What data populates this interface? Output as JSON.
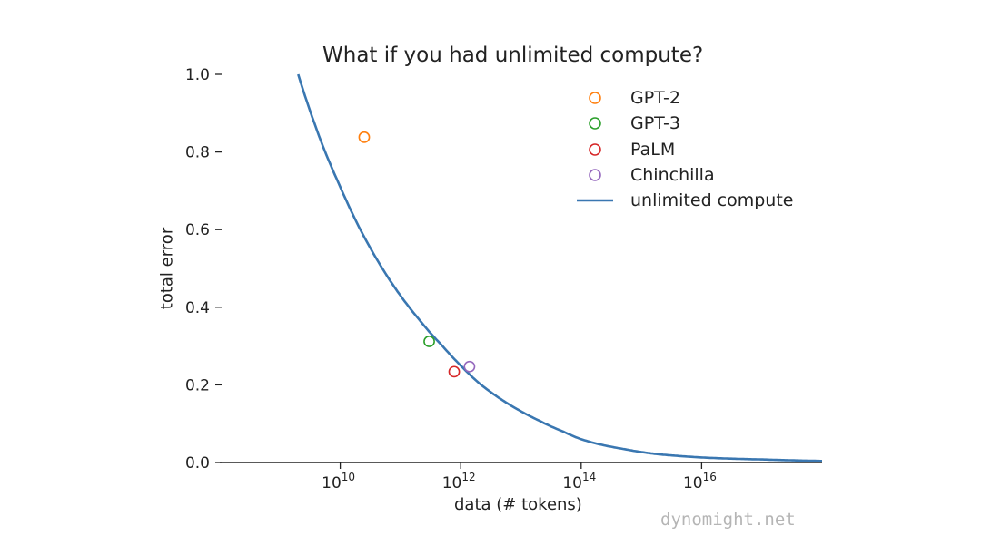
{
  "chart_data": {
    "type": "scatter",
    "title": "What if you had unlimited compute?",
    "xlabel": "data (# tokens)",
    "ylabel": "total error",
    "xscale": "log",
    "xlim": [
      100000000.0,
      1e+18
    ],
    "ylim": [
      0.0,
      1.0
    ],
    "yticks": [
      {
        "value": 0.0,
        "label": "0.0"
      },
      {
        "value": 0.2,
        "label": "0.2"
      },
      {
        "value": 0.4,
        "label": "0.4"
      },
      {
        "value": 0.6,
        "label": "0.6"
      },
      {
        "value": 0.8,
        "label": "0.8"
      },
      {
        "value": 1.0,
        "label": "1.0"
      }
    ],
    "xticks": [
      {
        "value": 10000000000.0,
        "base": "10",
        "exp": "10"
      },
      {
        "value": 1000000000000.0,
        "base": "10",
        "exp": "12"
      },
      {
        "value": 100000000000000.0,
        "base": "10",
        "exp": "14"
      },
      {
        "value": 1e+16,
        "base": "10",
        "exp": "16"
      }
    ],
    "grid": false,
    "legend_position": "top-right",
    "series": [
      {
        "name": "GPT-2",
        "kind": "points",
        "color": "#ff7f0e",
        "points": [
          {
            "x": 25000000000.0,
            "y": 0.838
          }
        ]
      },
      {
        "name": "GPT-3",
        "kind": "points",
        "color": "#2ca02c",
        "points": [
          {
            "x": 300000000000.0,
            "y": 0.312
          }
        ]
      },
      {
        "name": "PaLM",
        "kind": "points",
        "color": "#d62728",
        "points": [
          {
            "x": 780000000000.0,
            "y": 0.234
          }
        ]
      },
      {
        "name": "Chinchilla",
        "kind": "points",
        "color": "#9467bd",
        "points": [
          {
            "x": 1400000000000.0,
            "y": 0.247
          }
        ]
      },
      {
        "name": "unlimited compute",
        "kind": "curve",
        "color": "#3a77b1",
        "x": [
          2000000000.0,
          5000000000.0,
          10000000000.0,
          20000000000.0,
          50000000000.0,
          100000000000.0,
          200000000000.0,
          500000000000.0,
          1000000000000.0,
          2000000000000.0,
          5000000000000.0,
          10000000000000.0,
          20000000000000.0,
          50000000000000.0,
          100000000000000.0,
          200000000000000.0,
          500000000000000.0,
          1000000000000000.0,
          2000000000000000.0,
          5000000000000000.0,
          1e+16,
          2e+16,
          5e+16,
          1e+17,
          1e+18
        ],
        "y": [
          1.0,
          0.82,
          0.71,
          0.61,
          0.5,
          0.43,
          0.37,
          0.3,
          0.25,
          0.205,
          0.16,
          0.132,
          0.108,
          0.08,
          0.06,
          0.047,
          0.035,
          0.027,
          0.021,
          0.016,
          0.013,
          0.011,
          0.009,
          0.008,
          0.004
        ]
      }
    ]
  },
  "watermark": "dynomight.net"
}
